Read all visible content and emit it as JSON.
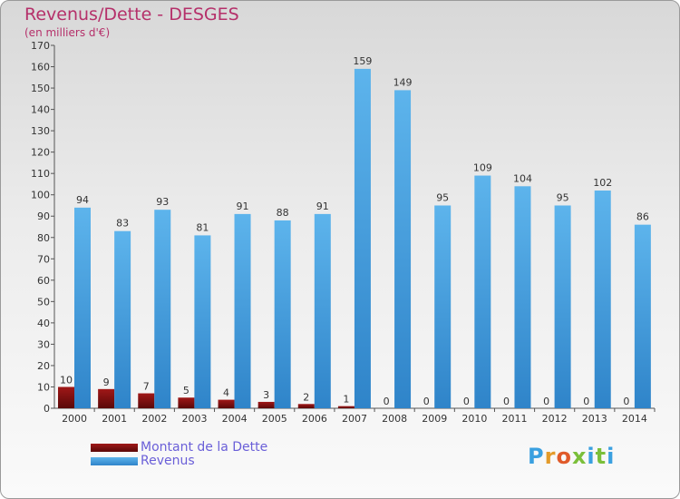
{
  "title": "Revenus/Dette - DESGES",
  "subtitle": "(en milliers d'€)",
  "colors": {
    "dette": "#7a0e0e",
    "revenus": "#3a9ae0",
    "title": "#b5306a",
    "legend_text": "#6a5fd8"
  },
  "legend": [
    {
      "label": "Montant de la Dette",
      "color": "#7a0e0e"
    },
    {
      "label": "Revenus",
      "color": "#3a9ae0"
    }
  ],
  "logo": {
    "letters": [
      "P",
      "r",
      "o",
      "x",
      "i",
      "t",
      "i"
    ],
    "colors": [
      "#3aa0e0",
      "#e39b2a",
      "#e05a2a",
      "#7bbf3a",
      "#3aa0e0",
      "#7bbf3a",
      "#3aa0e0"
    ]
  },
  "chart_data": {
    "type": "bar",
    "categories": [
      "2000",
      "2001",
      "2002",
      "2003",
      "2004",
      "2005",
      "2006",
      "2007",
      "2008",
      "2009",
      "2010",
      "2011",
      "2012",
      "2013",
      "2014"
    ],
    "series": [
      {
        "name": "Montant de la Dette",
        "values": [
          10,
          9,
          7,
          5,
          4,
          3,
          2,
          1,
          0,
          0,
          0,
          0,
          0,
          0,
          0
        ]
      },
      {
        "name": "Revenus",
        "values": [
          94,
          83,
          93,
          81,
          91,
          88,
          91,
          159,
          149,
          95,
          109,
          104,
          95,
          102,
          86
        ]
      }
    ],
    "ylim": [
      0,
      170
    ],
    "yticks": [
      0,
      10,
      20,
      30,
      40,
      50,
      60,
      70,
      80,
      90,
      100,
      110,
      120,
      130,
      140,
      150,
      160,
      170
    ],
    "grid": false,
    "legend_position": "bottom-left"
  }
}
